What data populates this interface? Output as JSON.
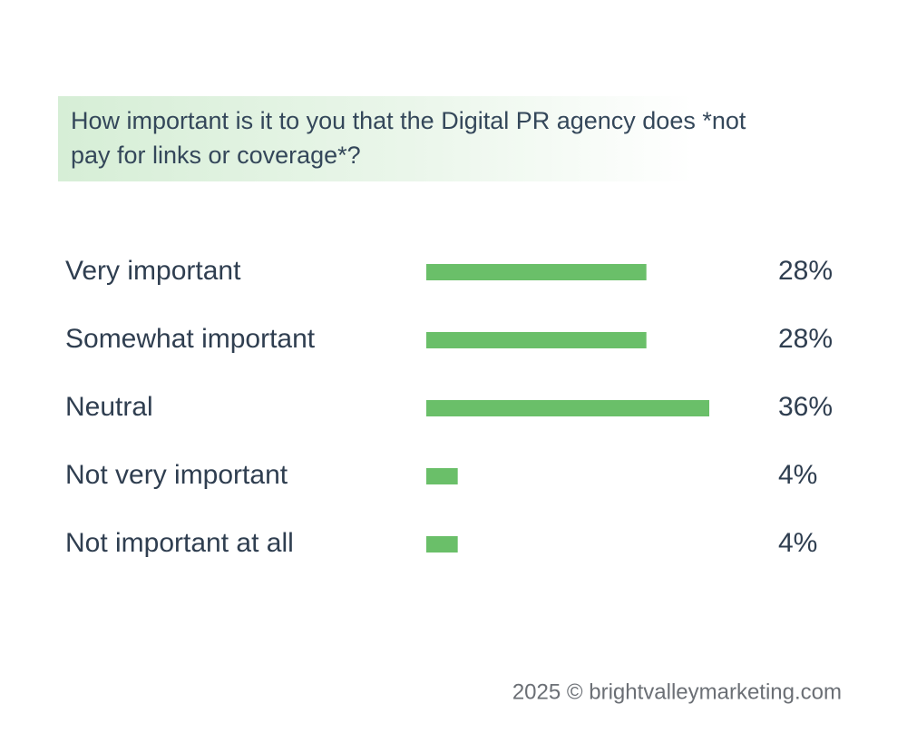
{
  "chart_data": {
    "type": "bar",
    "orientation": "horizontal",
    "title": "How important is it to you that the Digital PR agency does *not pay for links or coverage*?",
    "categories": [
      "Very important",
      "Somewhat important",
      "Neutral",
      "Not very important",
      "Not important at all"
    ],
    "values": [
      28,
      28,
      36,
      4,
      4
    ],
    "value_labels": [
      "28%",
      "28%",
      "36%",
      "4%",
      "4%"
    ],
    "color": "#6abf69",
    "source": "2025 © brightvalleymarketing.com"
  }
}
